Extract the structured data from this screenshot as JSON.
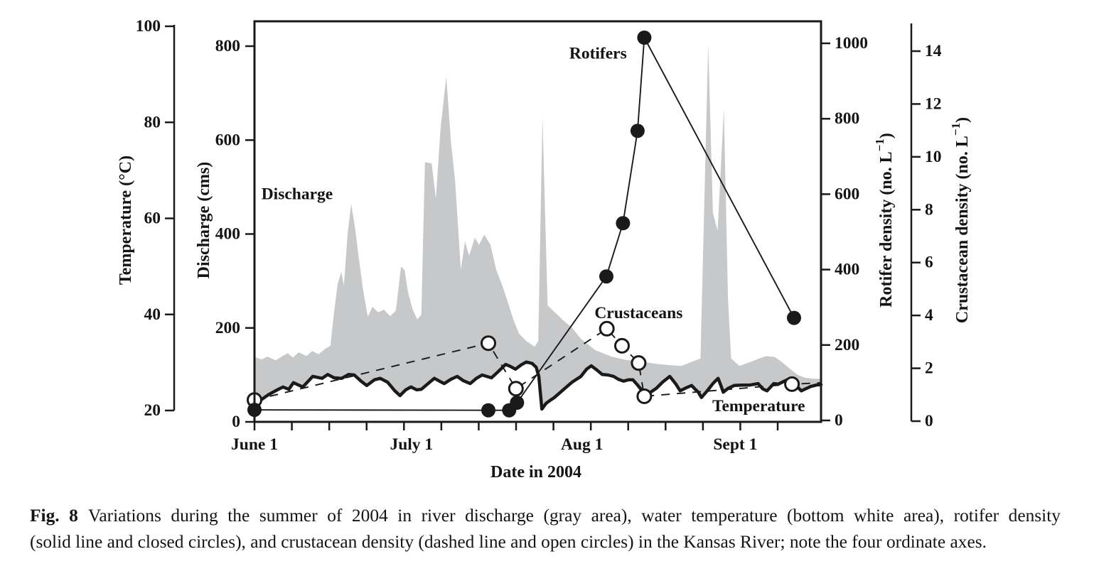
{
  "figure": {
    "caption": {
      "label": "Fig. 8",
      "line1": "Variations during the summer of 2004 in river discharge (gray area), water temperature (bottom white area), rotifer density",
      "line2": "(solid line and closed circles), and crustacean density (dashed line and open circles) in the Kansas River; note the four ordinate axes."
    }
  },
  "chart_data": {
    "type": "area",
    "subtype": "multi-axis area + line + scatter (four ordinate axes)",
    "title": "",
    "x_axis": {
      "title": "Date in 2004",
      "range_days": [
        0,
        109
      ],
      "minor_tick_interval_days": 7.19,
      "tick_labels": [
        {
          "label": "June 1",
          "day": 0
        },
        {
          "label": "July 1",
          "day": 30.2
        },
        {
          "label": "Aug 1",
          "day": 63
        },
        {
          "label": "Sept 1",
          "day": 92.5
        }
      ]
    },
    "y_axes": {
      "temperature": {
        "title_pre": "Temperature (°C)",
        "ticks": [
          20,
          40,
          60,
          80,
          100
        ],
        "range": [
          20,
          100
        ],
        "position": "outer-left"
      },
      "discharge": {
        "title_pre": "Discharge (cms)",
        "ticks": [
          0,
          200,
          400,
          600,
          800
        ],
        "range": [
          0,
          853
        ],
        "position": "frame-left"
      },
      "rotifer": {
        "title_pre": "Rotifer density (no. L",
        "title_sup": "−1",
        "title_post": ")",
        "ticks": [
          0,
          200,
          400,
          600,
          800,
          1000
        ],
        "range": [
          0,
          1058
        ],
        "position": "frame-right"
      },
      "crustacean": {
        "title_pre": "Crustacean density (no. L",
        "title_sup": "−1",
        "title_post": ")",
        "ticks": [
          0,
          2,
          4,
          6,
          8,
          10,
          12,
          14
        ],
        "range": [
          0,
          15.1
        ],
        "position": "outer-right"
      }
    },
    "series": {
      "discharge_area": {
        "name": "Discharge",
        "style": "filled-area",
        "color": "#c7c8c9",
        "axis": "discharge",
        "points": [
          [
            0,
            138
          ],
          [
            1.4,
            133
          ],
          [
            2.5,
            139
          ],
          [
            4.1,
            131
          ],
          [
            5.5,
            141
          ],
          [
            6.4,
            146
          ],
          [
            7.4,
            137
          ],
          [
            8.5,
            148
          ],
          [
            10,
            140
          ],
          [
            11.1,
            151
          ],
          [
            12.3,
            144
          ],
          [
            13.7,
            156
          ],
          [
            14.6,
            162
          ],
          [
            15.3,
            233
          ],
          [
            16,
            293
          ],
          [
            16.7,
            320
          ],
          [
            17.2,
            290
          ],
          [
            17.9,
            399
          ],
          [
            18.6,
            464
          ],
          [
            19.3,
            417
          ],
          [
            20.1,
            346
          ],
          [
            20.9,
            281
          ],
          [
            21.8,
            224
          ],
          [
            22.7,
            245
          ],
          [
            23.8,
            233
          ],
          [
            24.9,
            239
          ],
          [
            26.1,
            225
          ],
          [
            27.2,
            237
          ],
          [
            28.2,
            331
          ],
          [
            28.9,
            323
          ],
          [
            29.5,
            278
          ],
          [
            30.4,
            240
          ],
          [
            31.3,
            218
          ],
          [
            32.1,
            228
          ],
          [
            32.8,
            553
          ],
          [
            34.1,
            550
          ],
          [
            34.9,
            475
          ],
          [
            35.8,
            626
          ],
          [
            36.9,
            735
          ],
          [
            37.8,
            596
          ],
          [
            38.6,
            513
          ],
          [
            39.7,
            324
          ],
          [
            40.5,
            384
          ],
          [
            41.3,
            354
          ],
          [
            42.4,
            392
          ],
          [
            43.2,
            377
          ],
          [
            44.2,
            399
          ],
          [
            45.4,
            377
          ],
          [
            46.5,
            324
          ],
          [
            47.6,
            293
          ],
          [
            48.7,
            256
          ],
          [
            49.8,
            218
          ],
          [
            50.9,
            188
          ],
          [
            52.3,
            172
          ],
          [
            53.9,
            160
          ],
          [
            54.6,
            172
          ],
          [
            55.4,
            649
          ],
          [
            56.4,
            248
          ],
          [
            57.5,
            236
          ],
          [
            58.4,
            227
          ],
          [
            59.5,
            215
          ],
          [
            61.1,
            200
          ],
          [
            62.8,
            177
          ],
          [
            65.5,
            153
          ],
          [
            68.7,
            139
          ],
          [
            71.4,
            132
          ],
          [
            74.1,
            129
          ],
          [
            76.9,
            124
          ],
          [
            79.6,
            121
          ],
          [
            82.1,
            119
          ],
          [
            83.7,
            126
          ],
          [
            85.1,
            132
          ],
          [
            85.8,
            135
          ],
          [
            87.3,
            804
          ],
          [
            88.2,
            445
          ],
          [
            89.1,
            407
          ],
          [
            90.3,
            667
          ],
          [
            91.1,
            263
          ],
          [
            91.7,
            135
          ],
          [
            93.3,
            119
          ],
          [
            95.3,
            127
          ],
          [
            97.1,
            135
          ],
          [
            98.5,
            140
          ],
          [
            100.1,
            138
          ],
          [
            101.5,
            127
          ],
          [
            103.1,
            112
          ],
          [
            104.5,
            100
          ],
          [
            105.9,
            94
          ],
          [
            107.3,
            92
          ],
          [
            109,
            92
          ]
        ]
      },
      "temperature_line": {
        "name": "Temperature",
        "style": "thick solid line, white area below",
        "color": "#1a1a1a",
        "axis": "temperature",
        "points": [
          [
            0,
            21.2
          ],
          [
            1.5,
            22.4
          ],
          [
            2.7,
            23.3
          ],
          [
            4.4,
            24.3
          ],
          [
            5.5,
            24.9
          ],
          [
            6.6,
            24.4
          ],
          [
            7.5,
            25.8
          ],
          [
            9.3,
            24.9
          ],
          [
            11.2,
            27.1
          ],
          [
            13,
            26.7
          ],
          [
            14.1,
            27.5
          ],
          [
            15.3,
            26.8
          ],
          [
            16.8,
            26.7
          ],
          [
            18.1,
            27.5
          ],
          [
            19.2,
            27.4
          ],
          [
            20.5,
            26.1
          ],
          [
            21.6,
            25.2
          ],
          [
            23.1,
            26.4
          ],
          [
            24.2,
            26.7
          ],
          [
            25.6,
            25.9
          ],
          [
            27,
            24.1
          ],
          [
            28,
            23.1
          ],
          [
            29.1,
            24.3
          ],
          [
            30.1,
            24.9
          ],
          [
            31.2,
            24.3
          ],
          [
            32.1,
            24.4
          ],
          [
            33.4,
            25.6
          ],
          [
            34.6,
            26.7
          ],
          [
            35.6,
            26.1
          ],
          [
            36.5,
            25.6
          ],
          [
            37.8,
            26.5
          ],
          [
            39,
            27.1
          ],
          [
            40.2,
            26.2
          ],
          [
            41.5,
            25.6
          ],
          [
            42.7,
            26.7
          ],
          [
            43.8,
            27.4
          ],
          [
            44.7,
            27.1
          ],
          [
            45.6,
            26.8
          ],
          [
            46.8,
            28
          ],
          [
            48.3,
            29.6
          ],
          [
            49.2,
            29.2
          ],
          [
            50.2,
            28.6
          ],
          [
            51.3,
            29.5
          ],
          [
            52.3,
            30.1
          ],
          [
            53.4,
            29.8
          ],
          [
            54.2,
            29
          ],
          [
            54.7,
            27.1
          ],
          [
            55.3,
            20.3
          ],
          [
            56.1,
            21.5
          ],
          [
            57,
            22.2
          ],
          [
            57.7,
            22.7
          ],
          [
            59.5,
            24.4
          ],
          [
            61.1,
            25.9
          ],
          [
            62.8,
            27.1
          ],
          [
            63.9,
            28.6
          ],
          [
            64.8,
            29.3
          ],
          [
            65.9,
            28.4
          ],
          [
            66.9,
            27.5
          ],
          [
            68,
            27.4
          ],
          [
            69.1,
            27.1
          ],
          [
            70,
            26.5
          ],
          [
            71,
            26.1
          ],
          [
            72,
            26.4
          ],
          [
            72.8,
            26.4
          ],
          [
            73.7,
            25.3
          ],
          [
            74.6,
            24.1
          ],
          [
            75.1,
            23
          ],
          [
            76.2,
            23.8
          ],
          [
            77.3,
            24.6
          ],
          [
            78.5,
            25.9
          ],
          [
            79.9,
            27.1
          ],
          [
            81,
            25.6
          ],
          [
            81.9,
            24.1
          ],
          [
            83,
            24.7
          ],
          [
            84.1,
            25.2
          ],
          [
            84.8,
            24.4
          ],
          [
            85.4,
            23.8
          ],
          [
            86,
            22.7
          ],
          [
            87.1,
            24.1
          ],
          [
            88.2,
            25.6
          ],
          [
            89.2,
            26.7
          ],
          [
            89.7,
            25.3
          ],
          [
            90.2,
            23.8
          ],
          [
            91.1,
            24.6
          ],
          [
            92.3,
            25.2
          ],
          [
            93.8,
            25.3
          ],
          [
            95.3,
            25.3
          ],
          [
            96.9,
            25.6
          ],
          [
            97.8,
            24.5
          ],
          [
            98.6,
            24.1
          ],
          [
            99.9,
            25.6
          ],
          [
            100.8,
            25.5
          ],
          [
            102.5,
            26.4
          ],
          [
            103.4,
            25.9
          ],
          [
            104.2,
            25.2
          ],
          [
            105.2,
            24.1
          ],
          [
            106.2,
            24.6
          ],
          [
            107,
            25
          ],
          [
            108.1,
            25.3
          ],
          [
            109,
            25.4
          ]
        ]
      },
      "rotifers": {
        "name": "Rotifers",
        "style": "thin solid line with closed circles",
        "color": "#1a1a1a",
        "axis": "rotifer",
        "points": [
          [
            0,
            28
          ],
          [
            45,
            27
          ],
          [
            49,
            27
          ],
          [
            50.5,
            47
          ],
          [
            67.7,
            382
          ],
          [
            70.9,
            523
          ],
          [
            73.7,
            768
          ],
          [
            75,
            1015
          ],
          [
            103.8,
            272
          ]
        ]
      },
      "crustaceans": {
        "name": "Crustaceans",
        "style": "dashed line with open circles",
        "color": "#1a1a1a",
        "axis": "crustacean",
        "points": [
          [
            0,
            0.8
          ],
          [
            45,
            2.95
          ],
          [
            50.3,
            1.23
          ],
          [
            67.8,
            3.5
          ],
          [
            70.7,
            2.85
          ],
          [
            73.9,
            2.2
          ],
          [
            75,
            0.94
          ],
          [
            103.4,
            1.4
          ]
        ],
        "trailing_point": [
          109,
          1.45
        ]
      }
    },
    "annotations": [
      {
        "text": "Discharge",
        "day": 8.2,
        "axis": "discharge",
        "value": 485
      },
      {
        "text": "Rotifers",
        "day": 66.1,
        "axis": "rotifer",
        "value": 973
      },
      {
        "text": "Crustaceans",
        "day": 73.9,
        "axis": "crustacean",
        "value": 4.08
      },
      {
        "text": "Temperature",
        "day": 97,
        "axis": "temperature",
        "value": 20.9
      }
    ],
    "layout_hints": {
      "grid": false,
      "legend": "in-plot text annotations",
      "background": "#ffffff"
    }
  }
}
